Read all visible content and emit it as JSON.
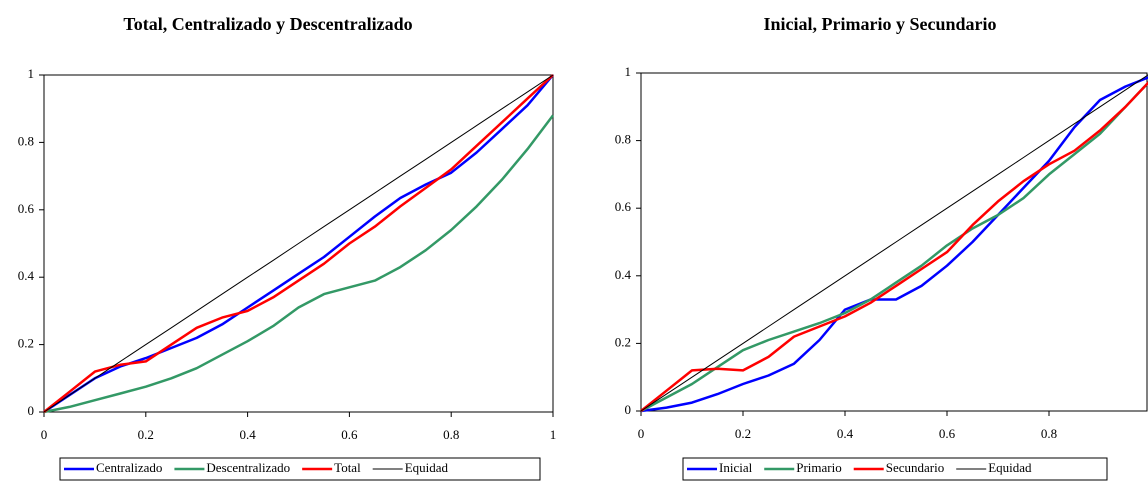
{
  "chart_data": [
    {
      "type": "line",
      "title": "Total, Centralizado y Descentralizado",
      "x": [
        0,
        0.05,
        0.1,
        0.15,
        0.2,
        0.25,
        0.3,
        0.35,
        0.4,
        0.45,
        0.5,
        0.55,
        0.6,
        0.65,
        0.7,
        0.75,
        0.8,
        0.85,
        0.9,
        0.95,
        1
      ],
      "xlim": [
        0,
        1
      ],
      "ylim": [
        0,
        1
      ],
      "xticks": [
        0,
        0.2,
        0.4,
        0.6,
        0.8,
        1
      ],
      "yticks": [
        0,
        0.2,
        0.4,
        0.6,
        0.8,
        1
      ],
      "series": [
        {
          "name": "Centralizado",
          "color": "#0000ff",
          "values": [
            0,
            0.05,
            0.1,
            0.135,
            0.16,
            0.19,
            0.22,
            0.26,
            0.31,
            0.36,
            0.41,
            0.46,
            0.52,
            0.58,
            0.635,
            0.675,
            0.71,
            0.77,
            0.84,
            0.91,
            1
          ]
        },
        {
          "name": "Descentralizado",
          "color": "#339966",
          "values": [
            0,
            0.015,
            0.035,
            0.055,
            0.075,
            0.1,
            0.13,
            0.17,
            0.21,
            0.255,
            0.31,
            0.35,
            0.37,
            0.39,
            0.43,
            0.48,
            0.54,
            0.61,
            0.69,
            0.78,
            0.88
          ]
        },
        {
          "name": "Total",
          "color": "#ff0000",
          "values": [
            0,
            0.06,
            0.12,
            0.14,
            0.15,
            0.2,
            0.25,
            0.28,
            0.3,
            0.34,
            0.39,
            0.44,
            0.5,
            0.55,
            0.61,
            0.665,
            0.72,
            0.79,
            0.86,
            0.93,
            1
          ]
        },
        {
          "name": "Equidad",
          "color": "#000000",
          "values": [
            0,
            0.05,
            0.1,
            0.15,
            0.2,
            0.25,
            0.3,
            0.35,
            0.4,
            0.45,
            0.5,
            0.55,
            0.6,
            0.65,
            0.7,
            0.75,
            0.8,
            0.85,
            0.9,
            0.95,
            1
          ]
        }
      ]
    },
    {
      "type": "line",
      "title": "Inicial, Primario y Secundario",
      "x": [
        0,
        0.05,
        0.1,
        0.15,
        0.2,
        0.25,
        0.3,
        0.35,
        0.4,
        0.45,
        0.5,
        0.55,
        0.6,
        0.65,
        0.7,
        0.75,
        0.8,
        0.85,
        0.9,
        0.95,
        1
      ],
      "xlim": [
        0,
        1
      ],
      "ylim": [
        0,
        1
      ],
      "xticks": [
        0,
        0.2,
        0.4,
        0.6,
        0.8
      ],
      "yticks": [
        0,
        0.2,
        0.4,
        0.6,
        0.8,
        1
      ],
      "series": [
        {
          "name": "Inicial",
          "color": "#0000ff",
          "values": [
            0,
            0.01,
            0.025,
            0.05,
            0.08,
            0.105,
            0.14,
            0.21,
            0.3,
            0.33,
            0.33,
            0.37,
            0.43,
            0.5,
            0.58,
            0.66,
            0.74,
            0.84,
            0.92,
            0.96,
            0.99
          ]
        },
        {
          "name": "Primario",
          "color": "#339966",
          "values": [
            0,
            0.04,
            0.08,
            0.13,
            0.18,
            0.21,
            0.235,
            0.26,
            0.29,
            0.33,
            0.38,
            0.43,
            0.49,
            0.54,
            0.58,
            0.63,
            0.7,
            0.76,
            0.82,
            0.9,
            0.98
          ]
        },
        {
          "name": "Secundario",
          "color": "#ff0000",
          "values": [
            0,
            0.06,
            0.12,
            0.125,
            0.12,
            0.16,
            0.22,
            0.25,
            0.28,
            0.32,
            0.37,
            0.42,
            0.47,
            0.55,
            0.62,
            0.68,
            0.73,
            0.77,
            0.83,
            0.9,
            0.98
          ]
        },
        {
          "name": "Equidad",
          "color": "#000000",
          "values": [
            0,
            0.05,
            0.1,
            0.15,
            0.2,
            0.25,
            0.3,
            0.35,
            0.4,
            0.45,
            0.5,
            0.55,
            0.6,
            0.65,
            0.7,
            0.75,
            0.8,
            0.85,
            0.9,
            0.95,
            1
          ]
        }
      ]
    }
  ]
}
